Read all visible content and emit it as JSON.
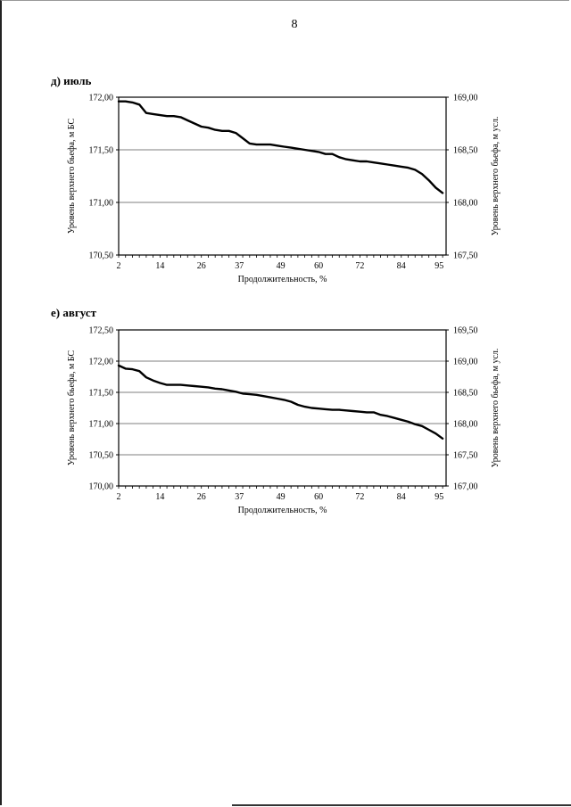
{
  "page_number": "8",
  "chart_data": [
    {
      "type": "line",
      "panel_label": "д) июль",
      "xlabel": "Продолжительность, %",
      "ylabel": "Уровень верхнего бьефа, м БС",
      "ylabel_right": "Уровень верхнего бьефа, м  усл.",
      "x_ticks": [
        "2",
        "14",
        "26",
        "37",
        "49",
        "60",
        "72",
        "84",
        "95"
      ],
      "xlim": [
        2,
        97
      ],
      "ylim": [
        170.5,
        172.0
      ],
      "yticks": [
        "170,50",
        "171,00",
        "171,50",
        "172,00"
      ],
      "ylim_right": [
        167.5,
        169.0
      ],
      "yticks_right": [
        "167,50",
        "168,00",
        "168,50",
        "169,00"
      ],
      "grid": "horizontal",
      "x": [
        2,
        4,
        6,
        8,
        10,
        12,
        14,
        16,
        18,
        20,
        22,
        24,
        26,
        28,
        30,
        32,
        34,
        36,
        38,
        40,
        42,
        44,
        46,
        48,
        50,
        52,
        54,
        56,
        58,
        60,
        62,
        64,
        66,
        68,
        70,
        72,
        74,
        76,
        78,
        80,
        82,
        84,
        86,
        88,
        90,
        92,
        94,
        96
      ],
      "values": [
        171.96,
        171.96,
        171.95,
        171.93,
        171.85,
        171.84,
        171.83,
        171.82,
        171.82,
        171.81,
        171.78,
        171.75,
        171.72,
        171.71,
        171.69,
        171.68,
        171.68,
        171.66,
        171.61,
        171.56,
        171.55,
        171.55,
        171.55,
        171.54,
        171.53,
        171.52,
        171.51,
        171.5,
        171.49,
        171.48,
        171.46,
        171.46,
        171.43,
        171.41,
        171.4,
        171.39,
        171.39,
        171.38,
        171.37,
        171.36,
        171.35,
        171.34,
        171.33,
        171.31,
        171.27,
        171.21,
        171.14,
        171.09
      ]
    },
    {
      "type": "line",
      "panel_label": "е) август",
      "xlabel": "Продолжительность, %",
      "ylabel": "Уровень верхнего бьефа, м БС",
      "ylabel_right": "Уровень верхнего бьефа, м  усл.",
      "x_ticks": [
        "2",
        "14",
        "26",
        "37",
        "49",
        "60",
        "72",
        "84",
        "95"
      ],
      "xlim": [
        2,
        97
      ],
      "ylim": [
        170.0,
        172.5
      ],
      "yticks": [
        "170,00",
        "170,50",
        "171,00",
        "171,50",
        "172,00",
        "172,50"
      ],
      "ylim_right": [
        167.0,
        169.5
      ],
      "yticks_right": [
        "167,00",
        "167,50",
        "168,00",
        "168,50",
        "169,00",
        "169,50"
      ],
      "grid": "horizontal",
      "x": [
        2,
        4,
        6,
        8,
        10,
        12,
        14,
        16,
        18,
        20,
        22,
        24,
        26,
        28,
        30,
        32,
        34,
        36,
        38,
        40,
        42,
        44,
        46,
        48,
        50,
        52,
        54,
        56,
        58,
        60,
        62,
        64,
        66,
        68,
        70,
        72,
        74,
        76,
        78,
        80,
        82,
        84,
        86,
        88,
        90,
        92,
        94,
        96
      ],
      "values": [
        171.93,
        171.88,
        171.87,
        171.84,
        171.74,
        171.69,
        171.65,
        171.62,
        171.62,
        171.62,
        171.61,
        171.6,
        171.59,
        171.58,
        171.56,
        171.55,
        171.53,
        171.51,
        171.48,
        171.47,
        171.46,
        171.44,
        171.42,
        171.4,
        171.38,
        171.35,
        171.3,
        171.27,
        171.25,
        171.24,
        171.23,
        171.22,
        171.22,
        171.21,
        171.2,
        171.19,
        171.18,
        171.18,
        171.14,
        171.12,
        171.09,
        171.06,
        171.03,
        170.99,
        170.96,
        170.9,
        170.84,
        170.76
      ]
    }
  ]
}
